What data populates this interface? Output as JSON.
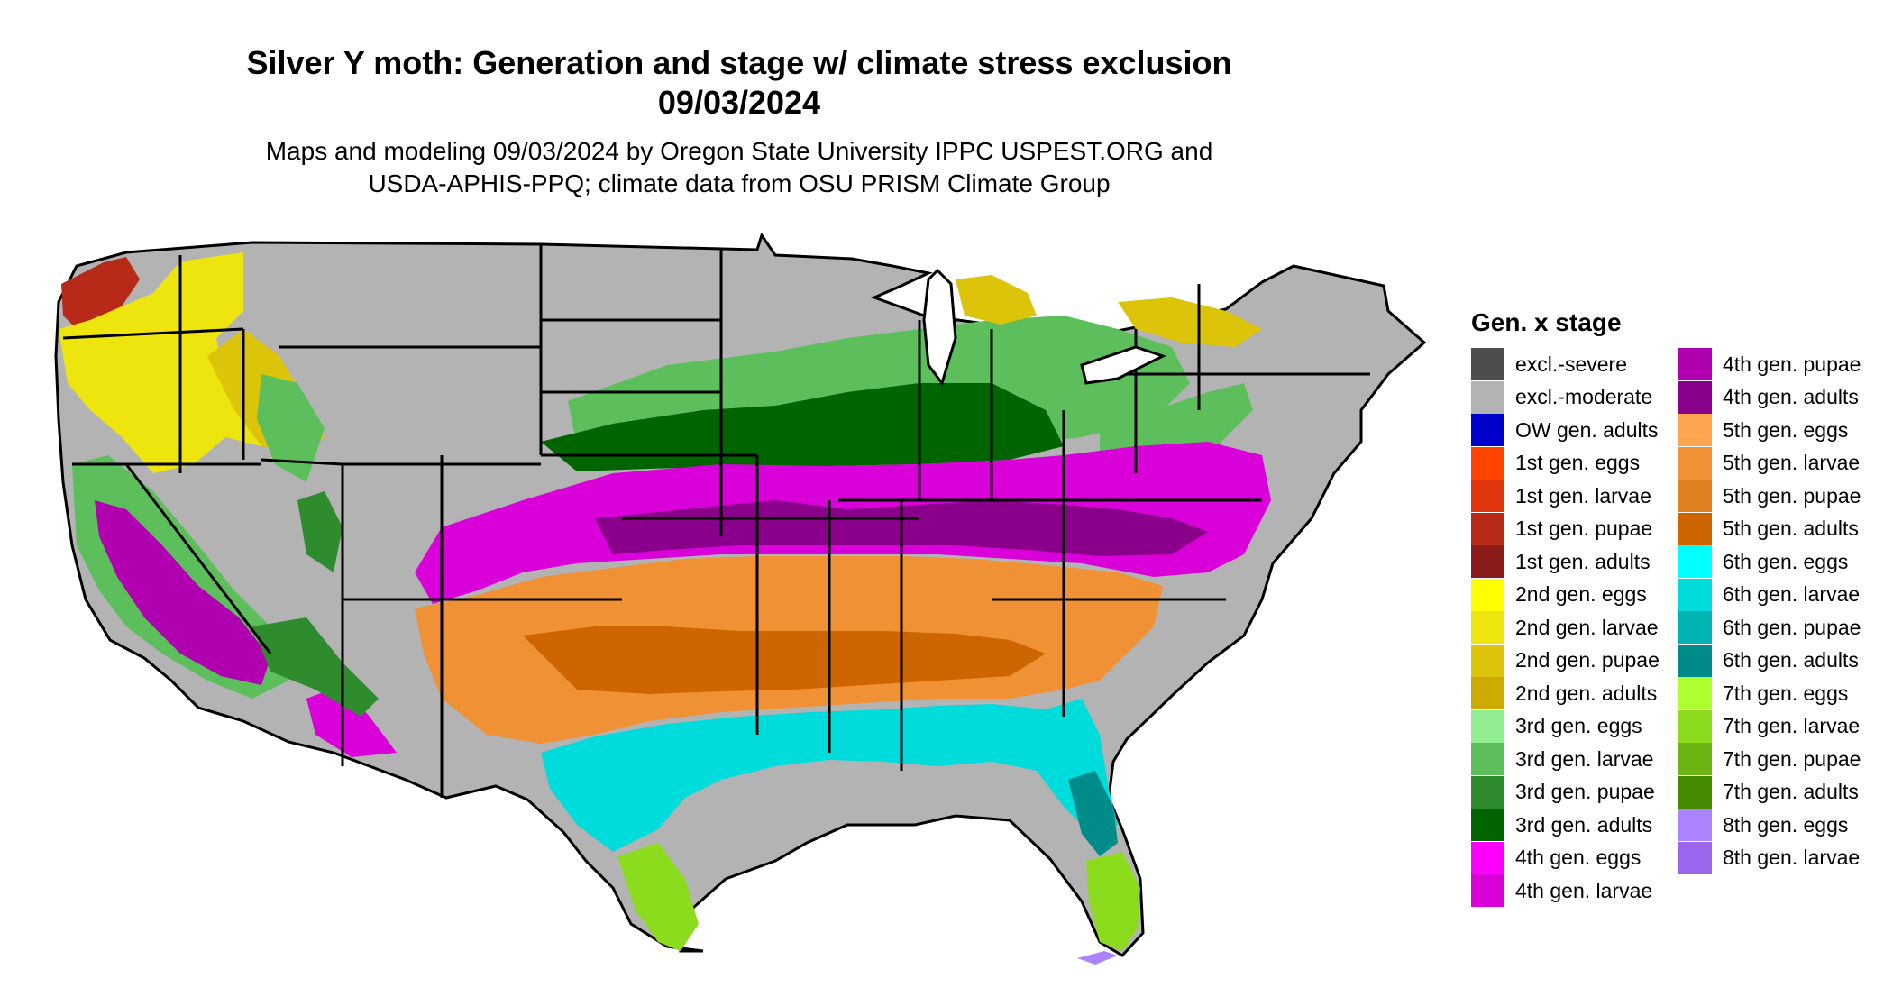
{
  "title": {
    "line1": "Silver Y moth: Generation and stage w/ climate stress exclusion",
    "line2": "09/03/2024"
  },
  "subtitle": {
    "line1": "Maps and modeling 09/03/2024 by Oregon State University IPPC USPEST.ORG and",
    "line2": "USDA-APHIS-PPQ; climate data from OSU PRISM Climate Group"
  },
  "legend": {
    "title": "Gen. x stage",
    "col1": [
      {
        "label": "excl.-severe",
        "color": "#4d4d4d"
      },
      {
        "label": "excl.-moderate",
        "color": "#b3b3b3"
      },
      {
        "label": "OW gen. adults",
        "color": "#0000cd"
      },
      {
        "label": "1st gen. eggs",
        "color": "#ff4500"
      },
      {
        "label": "1st gen. larvae",
        "color": "#e0350f"
      },
      {
        "label": "1st gen. pupae",
        "color": "#b72a18"
      },
      {
        "label": "1st gen. adults",
        "color": "#8b1a1a"
      },
      {
        "label": "2nd gen. eggs",
        "color": "#ffff00"
      },
      {
        "label": "2nd gen. larvae",
        "color": "#eee50f"
      },
      {
        "label": "2nd gen. pupae",
        "color": "#dcc40a"
      },
      {
        "label": "2nd gen. adults",
        "color": "#ccaa00"
      },
      {
        "label": "3rd gen. eggs",
        "color": "#90ee90"
      },
      {
        "label": "3rd gen. larvae",
        "color": "#5cbf5c"
      },
      {
        "label": "3rd gen. pupae",
        "color": "#2e8b2e"
      },
      {
        "label": "3rd gen. adults",
        "color": "#006400"
      },
      {
        "label": "4th gen. eggs",
        "color": "#ff00ff"
      },
      {
        "label": "4th gen. larvae",
        "color": "#d900d9"
      }
    ],
    "col2": [
      {
        "label": "4th gen. pupae",
        "color": "#b000b0"
      },
      {
        "label": "4th gen. adults",
        "color": "#8b008b"
      },
      {
        "label": "5th gen. eggs",
        "color": "#ffa54f"
      },
      {
        "label": "5th gen. larvae",
        "color": "#f09135"
      },
      {
        "label": "5th gen. pupae",
        "color": "#e07f20"
      },
      {
        "label": "5th gen. adults",
        "color": "#cd6600"
      },
      {
        "label": "6th gen. eggs",
        "color": "#00ffff"
      },
      {
        "label": "6th gen. larvae",
        "color": "#00dcdc"
      },
      {
        "label": "6th gen. pupae",
        "color": "#00b4b4"
      },
      {
        "label": "6th gen. adults",
        "color": "#008b8b"
      },
      {
        "label": "7th gen. eggs",
        "color": "#adff2f"
      },
      {
        "label": "7th gen. larvae",
        "color": "#8cdc1e"
      },
      {
        "label": "7th gen. pupae",
        "color": "#6cb414"
      },
      {
        "label": "7th gen. adults",
        "color": "#458b00"
      },
      {
        "label": "8th gen. eggs",
        "color": "#ab82ff"
      },
      {
        "label": "8th gen. larvae",
        "color": "#9b66ee"
      }
    ]
  },
  "map": {
    "region": "Contiguous United States",
    "colors": {
      "excluded": "#b3b3b3",
      "border": "#000000"
    }
  }
}
